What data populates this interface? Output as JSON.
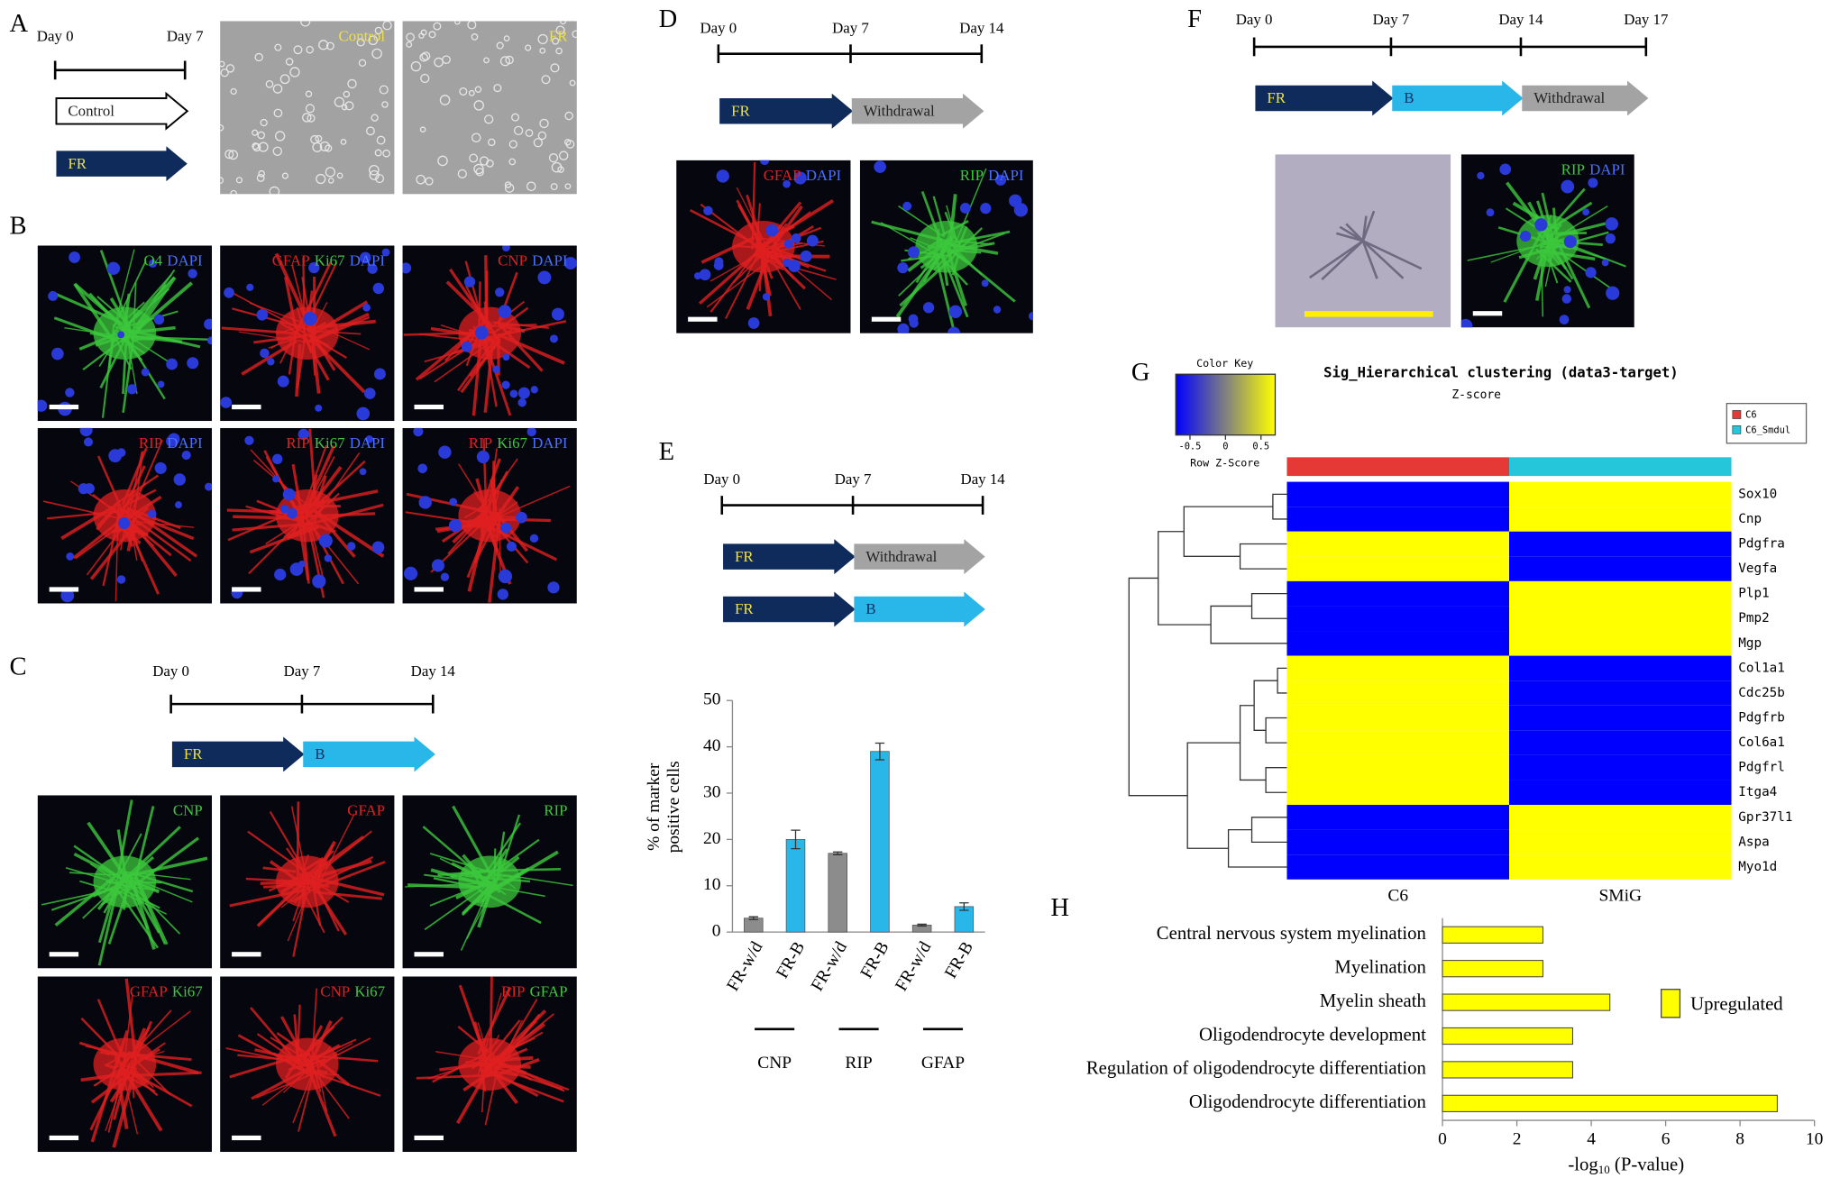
{
  "panels": [
    {
      "letter": "A",
      "days": [
        "Day 0",
        "Day 7"
      ],
      "arrows": [
        [
          {
            "text": "Control",
            "color": "#ffffff"
          }
        ],
        [
          {
            "text": "FR",
            "color": "#0f2b5b"
          }
        ]
      ],
      "images": [
        [
          {
            "text": "Control",
            "color": "#f0e040"
          }
        ],
        [
          {
            "text": "FR",
            "color": "#f0e040"
          }
        ]
      ]
    },
    {
      "letter": "B",
      "images": [
        [
          {
            "text": "O4",
            "color": "#3cc83c"
          },
          {
            "text": "DAPI",
            "color": "#4a70ff"
          }
        ],
        [
          {
            "text": "GFAP",
            "color": "#e02020"
          },
          {
            "text": "Ki67",
            "color": "#3cc83c"
          },
          {
            "text": "DAPI",
            "color": "#4a70ff"
          }
        ],
        [
          {
            "text": "CNP",
            "color": "#e02020"
          },
          {
            "text": "DAPI",
            "color": "#4a70ff"
          }
        ],
        [
          {
            "text": "RIP",
            "color": "#e02020"
          },
          {
            "text": "DAPI",
            "color": "#4a70ff"
          }
        ],
        [
          {
            "text": "RIP",
            "color": "#e02020"
          },
          {
            "text": "Ki67",
            "color": "#3cc83c"
          },
          {
            "text": "DAPI",
            "color": "#4a70ff"
          }
        ],
        [
          {
            "text": "RIP",
            "color": "#e02020"
          },
          {
            "text": "Ki67",
            "color": "#3cc83c"
          },
          {
            "text": "DAPI",
            "color": "#4a70ff"
          }
        ]
      ]
    },
    {
      "letter": "C",
      "days": [
        "Day 0",
        "Day 7",
        "Day 14"
      ],
      "arrows": [
        [
          {
            "text": "FR",
            "color": "#0f2b5b"
          },
          {
            "text": "B",
            "color": "#29b6e8"
          }
        ]
      ],
      "images": [
        [
          {
            "text": "CNP",
            "color": "#3cc83c"
          }
        ],
        [
          {
            "text": "GFAP",
            "color": "#e02020"
          }
        ],
        [
          {
            "text": "RIP",
            "color": "#3cc83c"
          }
        ],
        [
          {
            "text": "GFAP",
            "color": "#e02020"
          },
          {
            "text": "Ki67",
            "color": "#3cc83c"
          }
        ],
        [
          {
            "text": "CNP",
            "color": "#e02020"
          },
          {
            "text": "Ki67",
            "color": "#3cc83c"
          }
        ],
        [
          {
            "text": "RIP",
            "color": "#e02020"
          },
          {
            "text": "GFAP",
            "color": "#3cc83c"
          }
        ]
      ]
    },
    {
      "letter": "D",
      "days": [
        "Day 0",
        "Day 7",
        "Day 14"
      ],
      "arrows": [
        [
          {
            "text": "FR",
            "color": "#0f2b5b"
          },
          {
            "text": "Withdrawal",
            "color": "#a3a3a3"
          }
        ]
      ],
      "images": [
        [
          {
            "text": "GFAP",
            "color": "#e02020"
          },
          {
            "text": "DAPI",
            "color": "#4a70ff"
          }
        ],
        [
          {
            "text": "RIP",
            "color": "#3cc83c"
          },
          {
            "text": "DAPI",
            "color": "#4a70ff"
          }
        ]
      ]
    },
    {
      "letter": "E",
      "days": [
        "Day 0",
        "Day 7",
        "Day 14"
      ],
      "arrows": [
        [
          {
            "text": "FR",
            "color": "#0f2b5b"
          },
          {
            "text": "Withdrawal",
            "color": "#a3a3a3"
          }
        ],
        [
          {
            "text": "FR",
            "color": "#0f2b5b"
          },
          {
            "text": "B",
            "color": "#29b6e8"
          }
        ]
      ]
    },
    {
      "letter": "F",
      "days": [
        "Day 0",
        "Day 7",
        "Day 14",
        "Day 17"
      ],
      "arrows": [
        [
          {
            "text": "FR",
            "color": "#0f2b5b"
          },
          {
            "text": "B",
            "color": "#29b6e8"
          },
          {
            "text": "Withdrawal",
            "color": "#a3a3a3"
          }
        ]
      ],
      "images": [
        [],
        [
          {
            "text": "RIP",
            "color": "#3cc83c"
          },
          {
            "text": "DAPI",
            "color": "#4a70ff"
          }
        ]
      ]
    },
    {
      "letter": "G"
    },
    {
      "letter": "H"
    }
  ],
  "heatmap": {
    "title": "Sig_Hierarchical clustering (data3-target)",
    "subtitle": "Z-score",
    "key_title": "Color Key",
    "key_label": "Row Z-Score",
    "key_ticks": [
      -0.5,
      0,
      0.5
    ],
    "color_range": [
      -0.7,
      0.7
    ],
    "colors": [
      "#0000ff",
      "#ffff00"
    ],
    "legend": [
      {
        "name": "C6",
        "color": "#e53935"
      },
      {
        "name": "C6_Smdul",
        "color": "#26c6da"
      }
    ],
    "columns": [
      "C6",
      "SMiG"
    ],
    "rows": [
      "Sox10",
      "Cnp",
      "Pdgfra",
      "Vegfa",
      "Plp1",
      "Pmp2",
      "Mgp",
      "Col1a1",
      "Cdc25b",
      "Pdgfrb",
      "Col6a1",
      "Pdgfrl",
      "Itga4",
      "Gpr37l1",
      "Aspa",
      "Myo1d"
    ],
    "values": [
      [
        -0.7,
        0.7
      ],
      [
        -0.7,
        0.7
      ],
      [
        0.7,
        -0.7
      ],
      [
        0.7,
        -0.7
      ],
      [
        -0.7,
        0.7
      ],
      [
        -0.7,
        0.7
      ],
      [
        -0.7,
        0.7
      ],
      [
        0.7,
        -0.7
      ],
      [
        0.7,
        -0.7
      ],
      [
        0.7,
        -0.7
      ],
      [
        0.7,
        -0.7
      ],
      [
        0.7,
        -0.7
      ],
      [
        0.7,
        -0.7
      ],
      [
        -0.7,
        0.7
      ],
      [
        -0.7,
        0.7
      ],
      [
        -0.7,
        0.7
      ]
    ]
  },
  "chart_data": [
    {
      "type": "bar",
      "categories": [
        "FR-w/d",
        "FR-B",
        "FR-w/d",
        "FR-B",
        "FR-w/d",
        "FR-B"
      ],
      "groups": [
        "CNP",
        "RIP",
        "GFAP"
      ],
      "values": [
        3,
        20,
        17,
        39,
        1.5,
        5.5
      ],
      "errors": [
        0.3,
        2,
        0.3,
        1.8,
        0.2,
        0.8
      ],
      "colors": [
        "#8c8c8c",
        "#29b6e8",
        "#8c8c8c",
        "#29b6e8",
        "#8c8c8c",
        "#29b6e8"
      ],
      "ylabel": [
        "% of marker",
        "positive cells"
      ],
      "ylim": [
        0,
        50
      ],
      "yticks": [
        0,
        10,
        20,
        30,
        40,
        50
      ]
    },
    {
      "type": "barh",
      "categories": [
        "Central nervous system myelination",
        "Myelination",
        "Myelin sheath",
        "Oligodendrocyte development",
        "Regulation of oligodendrocyte differentiation",
        "Oligodendrocyte differentiation"
      ],
      "values": [
        2.7,
        2.7,
        4.5,
        3.5,
        3.5,
        9
      ],
      "color": "#ffff00",
      "series_name": "Upregulated",
      "xlabel": [
        "-log",
        "10",
        " (P-value)"
      ],
      "xlim": [
        0,
        10
      ],
      "xticks": [
        0,
        2,
        4,
        6,
        8,
        10
      ]
    }
  ]
}
